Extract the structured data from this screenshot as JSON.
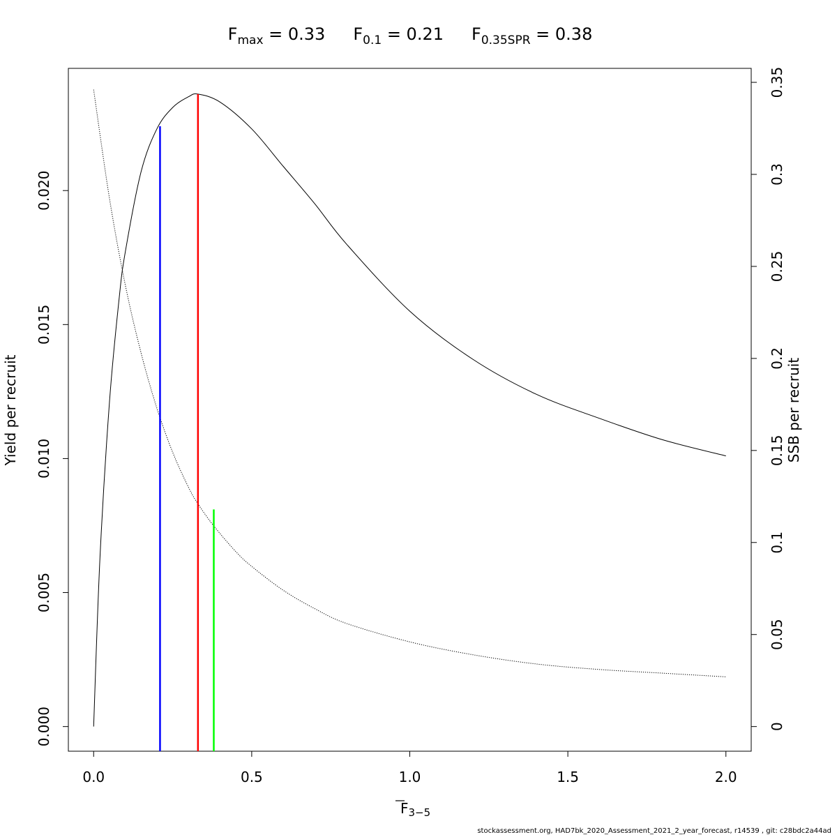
{
  "chart_data": {
    "type": "line",
    "title": {
      "parts": [
        {
          "base": "F",
          "sub": "max",
          "value": "= 0.33"
        },
        {
          "base": "F",
          "sub": "0.1",
          "value": "= 0.21"
        },
        {
          "base": "F",
          "sub": "0.35SPR",
          "value": "= 0.38"
        }
      ]
    },
    "xlabel": {
      "base": "F",
      "sub": "3−5",
      "overline": true
    },
    "ylabel_left": "Yield per recruit",
    "ylabel_right": "SSB per recruit",
    "xlim": [
      -0.08,
      2.08
    ],
    "ylim_left": [
      -0.00092,
      0.02456
    ],
    "ylim_right": [
      -0.0134,
      0.3576
    ],
    "x_ticks": [
      {
        "value": 0.0,
        "label": "0.0"
      },
      {
        "value": 0.5,
        "label": "0.5"
      },
      {
        "value": 1.0,
        "label": "1.0"
      },
      {
        "value": 1.5,
        "label": "1.5"
      },
      {
        "value": 2.0,
        "label": "2.0"
      }
    ],
    "y_left_ticks": [
      {
        "value": 0.0,
        "label": "0.000"
      },
      {
        "value": 0.005,
        "label": "0.005"
      },
      {
        "value": 0.01,
        "label": "0.010"
      },
      {
        "value": 0.015,
        "label": "0.015"
      },
      {
        "value": 0.02,
        "label": "0.020"
      }
    ],
    "y_right_ticks": [
      {
        "value": 0,
        "label": "0"
      },
      {
        "value": 0.05,
        "label": "0.05"
      },
      {
        "value": 0.1,
        "label": "0.1"
      },
      {
        "value": 0.15,
        "label": "0.15"
      },
      {
        "value": 0.2,
        "label": "0.2"
      },
      {
        "value": 0.25,
        "label": "0.25"
      },
      {
        "value": 0.3,
        "label": "0.3"
      },
      {
        "value": 0.35,
        "label": "0.35"
      }
    ],
    "series": [
      {
        "axis": "left",
        "style": "solid",
        "color": "#000000",
        "x": [
          0,
          0.02,
          0.05,
          0.08,
          0.1,
          0.15,
          0.2,
          0.25,
          0.3,
          0.33,
          0.4,
          0.5,
          0.6,
          0.7,
          0.8,
          1.0,
          1.2,
          1.4,
          1.6,
          1.8,
          2.0
        ],
        "y": [
          0,
          0.0063,
          0.0121,
          0.0159,
          0.0177,
          0.0207,
          0.0223,
          0.0231,
          0.0235,
          0.0236,
          0.0233,
          0.0223,
          0.0209,
          0.0195,
          0.018,
          0.0155,
          0.0137,
          0.0124,
          0.0115,
          0.0107,
          0.0101
        ]
      },
      {
        "axis": "right",
        "style": "dotted",
        "color": "#000000",
        "x": [
          0,
          0.05,
          0.1,
          0.15,
          0.2,
          0.25,
          0.3,
          0.33,
          0.38,
          0.45,
          0.5,
          0.6,
          0.7,
          0.8,
          1.0,
          1.2,
          1.4,
          1.6,
          1.8,
          2.0
        ],
        "y": [
          0.346,
          0.287,
          0.24,
          0.203,
          0.173,
          0.149,
          0.13,
          0.121,
          0.109,
          0.095,
          0.087,
          0.074,
          0.064,
          0.056,
          0.046,
          0.039,
          0.034,
          0.031,
          0.029,
          0.027
        ]
      }
    ],
    "reference_lines": [
      {
        "name": "F0.1",
        "x": 0.21,
        "y_top": 0.0224,
        "color": "#0000ff"
      },
      {
        "name": "Fmax",
        "x": 0.33,
        "y_top": 0.0236,
        "color": "#ff0000"
      },
      {
        "name": "F0.35SPR",
        "x": 0.38,
        "y_top": 0.0081,
        "color": "#00ff00"
      }
    ]
  },
  "footer": "stockassessment.org, HAD7bk_2020_Assessment_2021_2_year_forecast, r14539 , git: c28bdc2a44ad"
}
